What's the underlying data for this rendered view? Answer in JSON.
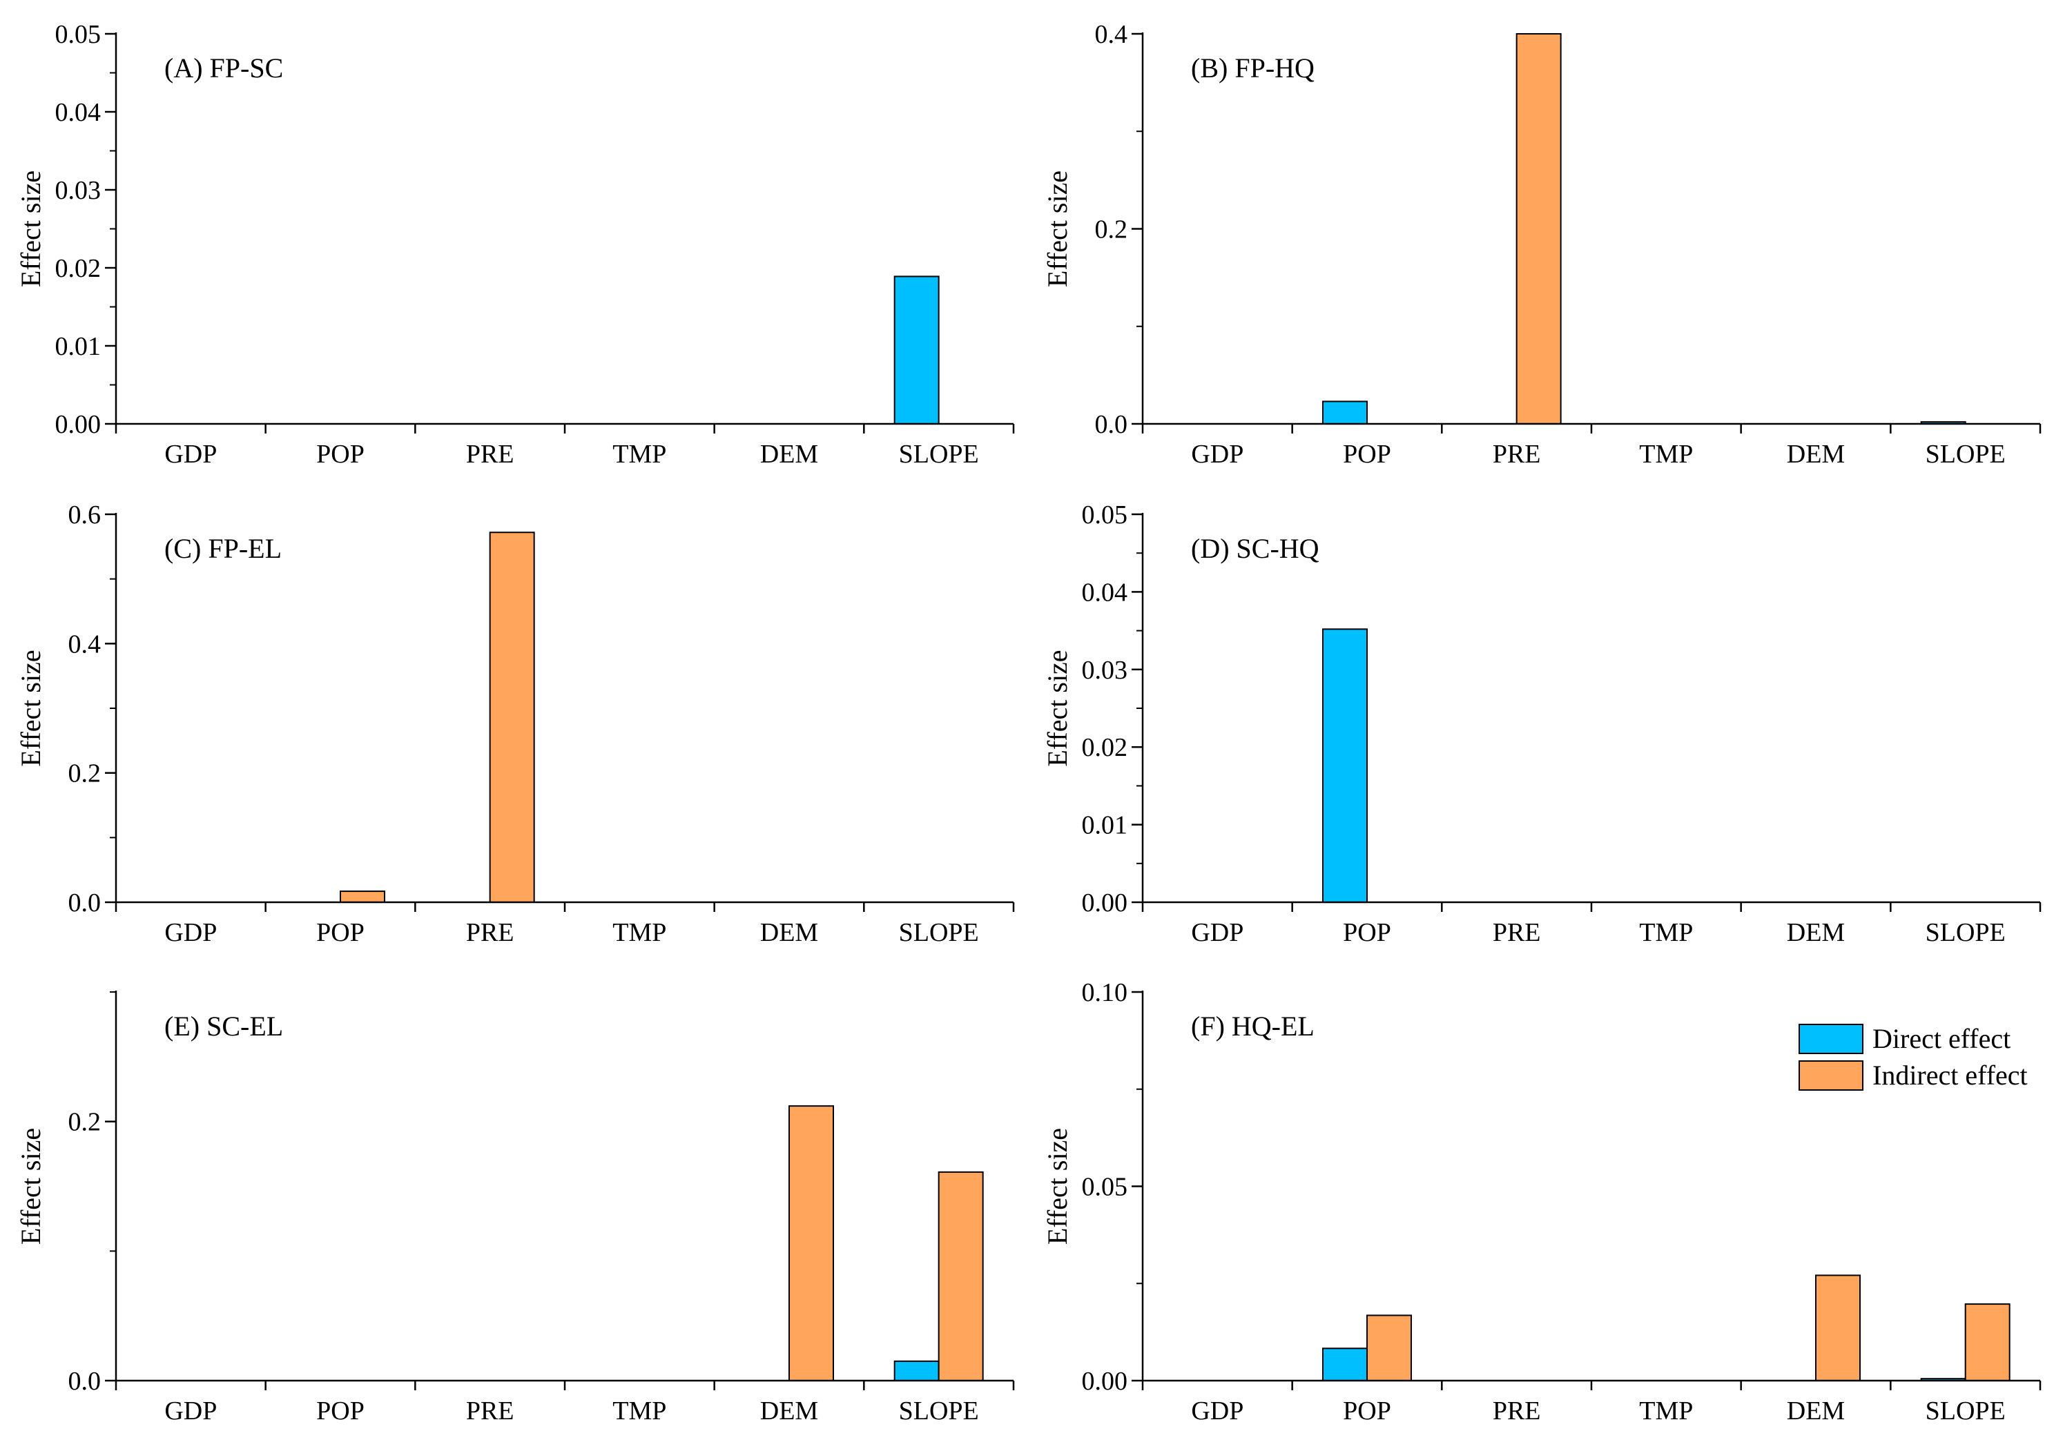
{
  "colors": {
    "direct": "#00BFFF",
    "indirect": "#FFA65C",
    "axis": "#000000"
  },
  "legend": [
    {
      "key": "direct",
      "label": "Direct effect"
    },
    {
      "key": "indirect",
      "label": "Indirect effect"
    }
  ],
  "chart_data": [
    {
      "type": "bar",
      "title": "(A) FP-SC",
      "ylabel": "Effect size",
      "xlabel": "",
      "categories": [
        "GDP",
        "POP",
        "PRE",
        "TMP",
        "DEM",
        "SLOPE"
      ],
      "ylim": [
        0,
        0.05
      ],
      "yticks": [
        0.0,
        0.01,
        0.02,
        0.03,
        0.04,
        0.05
      ],
      "ytick_labels": [
        "0.00",
        "0.01",
        "0.02",
        "0.03",
        "0.04",
        "0.05"
      ],
      "series": [
        {
          "name": "Direct effect",
          "key": "direct",
          "values": [
            0,
            0,
            0,
            0,
            0,
            0.0189
          ]
        },
        {
          "name": "Indirect effect",
          "key": "indirect",
          "values": [
            0,
            0,
            0,
            0,
            0,
            0
          ]
        }
      ]
    },
    {
      "type": "bar",
      "title": "(B) FP-HQ",
      "ylabel": "Effect size",
      "xlabel": "",
      "categories": [
        "GDP",
        "POP",
        "PRE",
        "TMP",
        "DEM",
        "SLOPE"
      ],
      "ylim": [
        0,
        0.4
      ],
      "yticks": [
        0.0,
        0.2,
        0.4
      ],
      "ytick_labels": [
        "0.0",
        "0.2",
        "0.4"
      ],
      "series": [
        {
          "name": "Direct effect",
          "key": "direct",
          "values": [
            0,
            0.023,
            0,
            0,
            0,
            0.002
          ]
        },
        {
          "name": "Indirect effect",
          "key": "indirect",
          "values": [
            0,
            0,
            0.4,
            0,
            0,
            0
          ]
        }
      ]
    },
    {
      "type": "bar",
      "title": "(C) FP-EL",
      "ylabel": "Effect size",
      "xlabel": "",
      "categories": [
        "GDP",
        "POP",
        "PRE",
        "TMP",
        "DEM",
        "SLOPE"
      ],
      "ylim": [
        0,
        0.6
      ],
      "yticks": [
        0.0,
        0.2,
        0.4,
        0.6
      ],
      "ytick_labels": [
        "0.0",
        "0.2",
        "0.4",
        "0.6"
      ],
      "series": [
        {
          "name": "Direct effect",
          "key": "direct",
          "values": [
            0,
            0,
            0,
            0,
            0,
            0
          ]
        },
        {
          "name": "Indirect effect",
          "key": "indirect",
          "values": [
            0,
            0.017,
            0.572,
            0,
            0,
            0
          ]
        }
      ]
    },
    {
      "type": "bar",
      "title": "(D) SC-HQ",
      "ylabel": "Effect size",
      "xlabel": "",
      "categories": [
        "GDP",
        "POP",
        "PRE",
        "TMP",
        "DEM",
        "SLOPE"
      ],
      "ylim": [
        0,
        0.05
      ],
      "yticks": [
        0.0,
        0.01,
        0.02,
        0.03,
        0.04,
        0.05
      ],
      "ytick_labels": [
        "0.00",
        "0.01",
        "0.02",
        "0.03",
        "0.04",
        "0.05"
      ],
      "series": [
        {
          "name": "Direct effect",
          "key": "direct",
          "values": [
            0,
            0.0352,
            0,
            0,
            0,
            0
          ]
        },
        {
          "name": "Indirect effect",
          "key": "indirect",
          "values": [
            0,
            0,
            0,
            0,
            0,
            0
          ]
        }
      ]
    },
    {
      "type": "bar",
      "title": "(E) SC-EL",
      "ylabel": "Effect size",
      "xlabel": "",
      "categories": [
        "GDP",
        "POP",
        "PRE",
        "TMP",
        "DEM",
        "SLOPE"
      ],
      "ylim": [
        0,
        0.3
      ],
      "yticks": [
        0.0,
        0.2
      ],
      "ytick_labels": [
        "0.0",
        "0.2"
      ],
      "series": [
        {
          "name": "Direct effect",
          "key": "direct",
          "values": [
            0,
            0,
            0,
            0,
            0,
            0.015
          ]
        },
        {
          "name": "Indirect effect",
          "key": "indirect",
          "values": [
            0,
            0,
            0,
            0,
            0.212,
            0.161
          ]
        }
      ]
    },
    {
      "type": "bar",
      "title": "(F) HQ-EL",
      "ylabel": "Effect size",
      "xlabel": "",
      "categories": [
        "GDP",
        "POP",
        "PRE",
        "TMP",
        "DEM",
        "SLOPE"
      ],
      "ylim": [
        0,
        0.1
      ],
      "yticks": [
        0.0,
        0.05,
        0.1
      ],
      "ytick_labels": [
        "0.00",
        "0.05",
        "0.10"
      ],
      "series": [
        {
          "name": "Direct effect",
          "key": "direct",
          "values": [
            0,
            0.0083,
            0,
            0,
            0,
            0.0005
          ]
        },
        {
          "name": "Indirect effect",
          "key": "indirect",
          "values": [
            0,
            0.0168,
            0,
            0,
            0.0271,
            0.0197
          ]
        }
      ]
    }
  ]
}
